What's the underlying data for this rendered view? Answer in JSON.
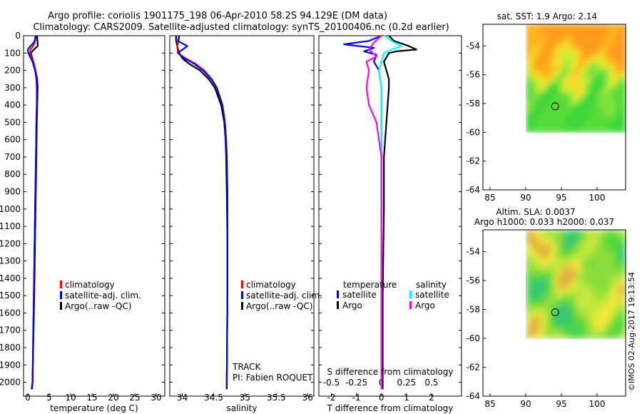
{
  "header": {
    "title_line1": "Argo profile: coriolis 1901175_198 06-Apr-2010 58.2S 94.129E (DM data)",
    "title_line2": "Climatology: CARS2009. Satellite-adjusted climatology: synTS_20100406.nc (0.2d earlier)"
  },
  "footer": {
    "credit": "©IMOS 02-Aug-2017 19:13:54"
  },
  "colors": {
    "climatology": "#ff0000",
    "satellite": "#0000ff",
    "argo": "#000000",
    "sal_satellite": "#00ffff",
    "sal_argo": "#ff00ff"
  },
  "chart_data": [
    {
      "id": "temperature",
      "type": "line",
      "xlabel": "temperature (deg C)",
      "ylabel": "",
      "xlim": [
        -1,
        32
      ],
      "ylim": [
        2080,
        0
      ],
      "xticks": [
        0,
        5,
        10,
        15,
        20,
        25,
        30
      ],
      "yticks": [
        0,
        100,
        200,
        300,
        400,
        500,
        600,
        700,
        800,
        900,
        1000,
        1100,
        1200,
        1300,
        1400,
        1500,
        1600,
        1700,
        1800,
        1900,
        2000
      ],
      "legend": [
        "climatology",
        "satellite-adj. clim.",
        "Argo(..raw -QC)"
      ],
      "series": [
        {
          "name": "Argo(..raw -QC)",
          "color": "#000000",
          "depth": [
            0,
            20,
            40,
            60,
            80,
            100,
            150,
            200,
            250,
            300,
            400,
            500,
            700,
            1000,
            1500,
            2000,
            2040
          ],
          "values": [
            2.2,
            2.2,
            2.3,
            2.3,
            1.4,
            0.7,
            1.3,
            1.8,
            2.2,
            2.3,
            2.2,
            2.1,
            2.0,
            1.8,
            1.5,
            1.1,
            1.0
          ]
        },
        {
          "name": "climatology",
          "color": "#ff0000",
          "depth": [
            0,
            20,
            40,
            60,
            80,
            100,
            150,
            200,
            250,
            300,
            400,
            500,
            700,
            1000,
            1500,
            2000,
            2040
          ],
          "values": [
            1.9,
            1.8,
            1.6,
            1.2,
            0.6,
            0.5,
            1.3,
            1.8,
            2.1,
            2.1,
            2.1,
            2.0,
            1.9,
            1.7,
            1.4,
            1.1,
            0.9
          ]
        },
        {
          "name": "satellite-adj. clim.",
          "color": "#0000ff",
          "depth": [
            0,
            20,
            40,
            60,
            80,
            100,
            150,
            200,
            250,
            300,
            400,
            500,
            700,
            1000,
            1500,
            2000,
            2040
          ],
          "values": [
            1.8,
            1.7,
            1.4,
            0.6,
            0.0,
            0.1,
            1.1,
            1.7,
            2.0,
            2.1,
            2.1,
            2.0,
            1.9,
            1.7,
            1.4,
            1.1,
            0.9
          ]
        }
      ]
    },
    {
      "id": "salinity",
      "type": "line",
      "xlabel": "salinity",
      "ylabel": "",
      "xlim": [
        33.8,
        36.1
      ],
      "ylim": [
        2080,
        0
      ],
      "xticks": [
        34,
        34.5,
        35,
        35.5,
        36
      ],
      "legend": [
        "climatology",
        "satellite-adj. clim.",
        "Argo(..raw -QC)"
      ],
      "annotations": [
        "TRACK",
        "PI: Fabien ROQUET"
      ],
      "series": [
        {
          "name": "Argo(..raw -QC)",
          "color": "#000000",
          "depth": [
            0,
            30,
            60,
            100,
            130,
            160,
            200,
            250,
            300,
            400,
            500,
            600,
            700,
            900,
            1200,
            1500,
            2000,
            2040
          ],
          "values": [
            33.9,
            33.9,
            33.92,
            33.95,
            34.0,
            34.1,
            34.28,
            34.42,
            34.52,
            34.62,
            34.67,
            34.69,
            34.7,
            34.71,
            34.72,
            34.72,
            34.71,
            34.71
          ]
        },
        {
          "name": "climatology",
          "color": "#ff0000",
          "depth": [
            0,
            30,
            60,
            100,
            130,
            160,
            200,
            250,
            300,
            400,
            500,
            600,
            700,
            900,
            1200,
            1500,
            2000,
            2040
          ],
          "values": [
            33.95,
            33.94,
            33.92,
            33.93,
            34.05,
            34.2,
            34.35,
            34.47,
            34.55,
            34.64,
            34.68,
            34.7,
            34.71,
            34.72,
            34.72,
            34.72,
            34.71,
            34.71
          ]
        },
        {
          "name": "satellite-adj. clim.",
          "color": "#0000ff",
          "depth": [
            0,
            30,
            60,
            100,
            130,
            160,
            200,
            250,
            300,
            400,
            500,
            600,
            700,
            900,
            1200,
            1500,
            2000,
            2040
          ],
          "values": [
            33.95,
            33.93,
            34.08,
            33.93,
            34.03,
            34.18,
            34.33,
            34.46,
            34.55,
            34.64,
            34.68,
            34.7,
            34.71,
            34.72,
            34.72,
            34.72,
            34.71,
            34.71
          ]
        }
      ]
    },
    {
      "id": "difference",
      "type": "line",
      "xlabel": "T difference from climatology",
      "xlabel_top": "S difference from climatology",
      "xlim": [
        -2.5,
        3.2
      ],
      "ylim": [
        2080,
        0
      ],
      "xticks": [
        -2,
        -1,
        0,
        1,
        2
      ],
      "xticks_top": [
        "-0.5",
        "-0.25",
        "0",
        "0.25",
        "0.5"
      ],
      "legend_titles": [
        "temperature",
        "salinity"
      ],
      "legend": [
        "satellite",
        "Argo",
        "satellite",
        "Argo"
      ],
      "series": [
        {
          "name": "temperature satellite",
          "color": "#0000ff",
          "depth": [
            0,
            30,
            50,
            70,
            90,
            110,
            150,
            200,
            300,
            500,
            1000,
            1500,
            2000,
            2040
          ],
          "values": [
            0.0,
            -0.5,
            -1.5,
            -0.3,
            -0.7,
            -0.2,
            -0.3,
            -0.1,
            0.0,
            0.0,
            0.0,
            0.0,
            0.0,
            0.0
          ]
        },
        {
          "name": "temperature Argo",
          "color": "#000000",
          "depth": [
            0,
            30,
            60,
            80,
            90,
            100,
            150,
            200,
            250,
            300,
            500,
            700,
            1000,
            1500,
            2000,
            2040
          ],
          "values": [
            0.3,
            0.5,
            1.1,
            1.4,
            0.6,
            0.3,
            0.1,
            0.2,
            0.3,
            0.3,
            0.2,
            0.1,
            0.1,
            0.05,
            0.05,
            0.05
          ]
        },
        {
          "name": "salinity satellite",
          "color": "#00ffff",
          "depth": [
            0,
            30,
            60,
            80,
            100,
            150,
            200,
            300,
            500,
            700,
            1000,
            1500,
            2000,
            2040
          ],
          "values": [
            0.12,
            0.4,
            0.8,
            0.4,
            0.1,
            0.0,
            -0.1,
            0.0,
            0.0,
            0.0,
            0.0,
            0.0,
            0.0,
            0.0
          ]
        },
        {
          "name": "salinity Argo",
          "color": "#ff00ff",
          "depth": [
            0,
            40,
            80,
            120,
            150,
            200,
            300,
            400,
            500,
            600,
            700,
            1000,
            1500,
            2000,
            2040
          ],
          "values": [
            0.0,
            -0.3,
            -0.5,
            -0.2,
            -0.6,
            -0.5,
            -0.6,
            -0.5,
            -0.2,
            -0.1,
            0.0,
            0.0,
            0.0,
            0.0,
            0.0
          ]
        }
      ]
    },
    {
      "id": "sst_map",
      "type": "heatmap",
      "title": "sat. SST: 1.9 Argo: 2.14",
      "xlim": [
        84,
        104
      ],
      "ylim": [
        -64,
        -52.5
      ],
      "xticks": [
        85,
        90,
        95,
        100
      ],
      "yticks": [
        -54,
        -56,
        -58,
        -60,
        -62,
        -64
      ],
      "extent": {
        "lon": [
          90,
          104
        ],
        "lat": [
          -60,
          -52.5
        ]
      },
      "marker": {
        "lon": 94.13,
        "lat": -58.2
      }
    },
    {
      "id": "sla_map",
      "type": "heatmap",
      "title_line1": "Altim. SLA: 0.0037",
      "title_line2": "Argo h1000: 0.033 h2000: 0.037",
      "xlim": [
        84,
        104
      ],
      "ylim": [
        -64,
        -52.5
      ],
      "xticks": [
        85,
        90,
        95,
        100
      ],
      "yticks": [
        -54,
        -56,
        -58,
        -60,
        -62,
        -64
      ],
      "extent": {
        "lon": [
          90,
          104
        ],
        "lat": [
          -60,
          -52.5
        ]
      },
      "marker": {
        "lon": 94.13,
        "lat": -58.2
      }
    }
  ]
}
